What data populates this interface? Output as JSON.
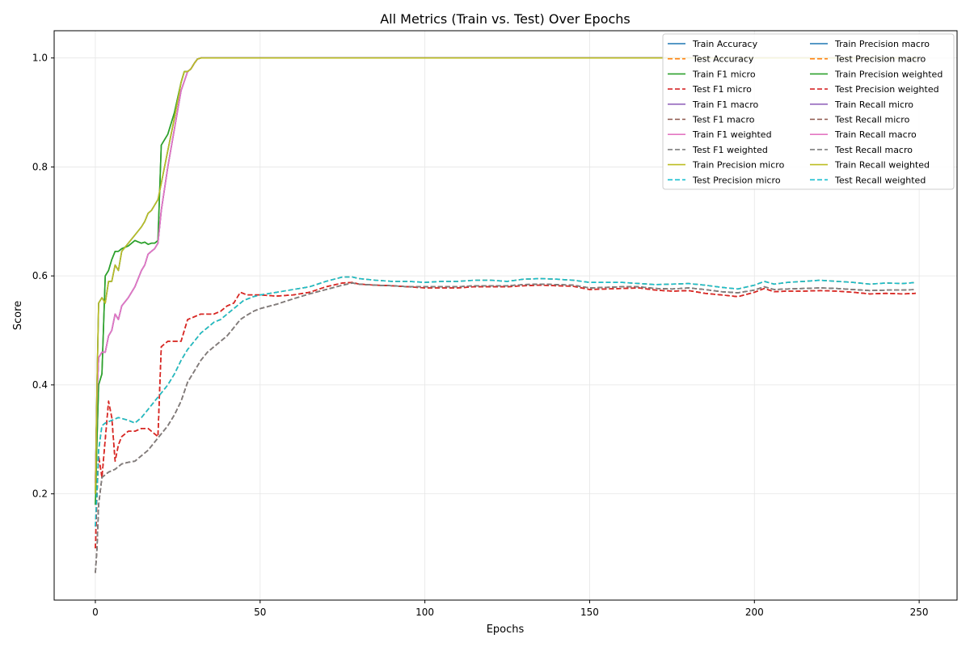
{
  "chart_data": {
    "type": "line",
    "title": "All Metrics (Train vs. Test) Over Epochs",
    "xlabel": "Epochs",
    "ylabel": "Score",
    "xlim": [
      -12.5,
      261.5
    ],
    "ylim": [
      0.005,
      1.05
    ],
    "xticks": [
      "0",
      "50",
      "100",
      "150",
      "200",
      "250"
    ],
    "yticks": [
      "0.2",
      "0.4",
      "0.6",
      "0.8",
      "1.0"
    ],
    "grid": true,
    "legend_position": "top-right",
    "legend_columns": 2,
    "colors": {
      "blue": "#1f77b4",
      "orange": "#ff7f0e",
      "green": "#2ca02c",
      "red": "#d62728",
      "purple": "#9467bd",
      "brown": "#8c564b",
      "pink": "#e377c2",
      "gray": "#7f7f7f",
      "olive": "#bcbd22",
      "cyan": "#17becf"
    },
    "curves": {
      "train_a": [
        [
          0,
          0.22
        ],
        [
          0.5,
          0.38
        ],
        [
          1,
          0.45
        ],
        [
          2,
          0.46
        ],
        [
          3,
          0.46
        ],
        [
          4,
          0.49
        ],
        [
          5,
          0.5
        ],
        [
          6,
          0.53
        ],
        [
          7,
          0.52
        ],
        [
          8,
          0.545
        ],
        [
          10,
          0.56
        ],
        [
          12,
          0.58
        ],
        [
          14,
          0.61
        ],
        [
          15,
          0.62
        ],
        [
          16,
          0.64
        ],
        [
          17,
          0.645
        ],
        [
          18,
          0.65
        ],
        [
          19,
          0.66
        ],
        [
          20,
          0.72
        ],
        [
          22,
          0.8
        ],
        [
          24,
          0.87
        ],
        [
          26,
          0.94
        ],
        [
          28,
          0.975
        ],
        [
          29,
          0.98
        ],
        [
          30,
          0.99
        ],
        [
          31,
          0.998
        ],
        [
          32,
          1.0
        ],
        [
          250,
          1.0
        ]
      ],
      "train_b": [
        [
          0,
          0.2
        ],
        [
          0.5,
          0.4
        ],
        [
          1,
          0.55
        ],
        [
          2,
          0.56
        ],
        [
          3,
          0.55
        ],
        [
          4,
          0.59
        ],
        [
          5,
          0.59
        ],
        [
          6,
          0.62
        ],
        [
          7,
          0.61
        ],
        [
          8,
          0.645
        ],
        [
          10,
          0.66
        ],
        [
          12,
          0.675
        ],
        [
          14,
          0.69
        ],
        [
          15,
          0.7
        ],
        [
          16,
          0.715
        ],
        [
          17,
          0.72
        ],
        [
          18,
          0.73
        ],
        [
          19,
          0.74
        ],
        [
          20,
          0.77
        ],
        [
          22,
          0.83
        ],
        [
          24,
          0.89
        ],
        [
          26,
          0.955
        ],
        [
          27,
          0.975
        ],
        [
          28,
          0.975
        ],
        [
          29,
          0.98
        ],
        [
          30,
          0.99
        ],
        [
          31,
          0.998
        ],
        [
          32,
          1.0
        ],
        [
          250,
          1.0
        ]
      ],
      "train_c": [
        [
          0,
          0.18
        ],
        [
          0.5,
          0.3
        ],
        [
          1,
          0.4
        ],
        [
          2,
          0.42
        ],
        [
          3,
          0.6
        ],
        [
          4,
          0.61
        ],
        [
          5,
          0.63
        ],
        [
          6,
          0.645
        ],
        [
          7,
          0.645
        ],
        [
          8,
          0.65
        ],
        [
          10,
          0.655
        ],
        [
          12,
          0.665
        ],
        [
          14,
          0.66
        ],
        [
          15,
          0.662
        ],
        [
          16,
          0.658
        ],
        [
          17,
          0.66
        ],
        [
          18,
          0.66
        ],
        [
          19,
          0.665
        ],
        [
          20,
          0.84
        ],
        [
          22,
          0.86
        ],
        [
          24,
          0.9
        ],
        [
          26,
          0.955
        ],
        [
          27,
          0.975
        ],
        [
          28,
          0.975
        ],
        [
          29,
          0.98
        ],
        [
          30,
          0.99
        ],
        [
          31,
          0.998
        ],
        [
          32,
          1.0
        ],
        [
          250,
          1.0
        ]
      ],
      "test_recall": [
        [
          0,
          0.14
        ],
        [
          0.5,
          0.2
        ],
        [
          1,
          0.28
        ],
        [
          2,
          0.325
        ],
        [
          3,
          0.33
        ],
        [
          5,
          0.335
        ],
        [
          7,
          0.34
        ],
        [
          10,
          0.335
        ],
        [
          12,
          0.33
        ],
        [
          14,
          0.34
        ],
        [
          16,
          0.355
        ],
        [
          18,
          0.37
        ],
        [
          20,
          0.385
        ],
        [
          22,
          0.4
        ],
        [
          24,
          0.42
        ],
        [
          26,
          0.445
        ],
        [
          28,
          0.465
        ],
        [
          30,
          0.48
        ],
        [
          32,
          0.495
        ],
        [
          34,
          0.505
        ],
        [
          36,
          0.515
        ],
        [
          38,
          0.52
        ],
        [
          40,
          0.53
        ],
        [
          42,
          0.54
        ],
        [
          45,
          0.555
        ],
        [
          48,
          0.562
        ],
        [
          50,
          0.565
        ],
        [
          55,
          0.57
        ],
        [
          60,
          0.575
        ],
        [
          65,
          0.58
        ],
        [
          70,
          0.59
        ],
        [
          75,
          0.598
        ],
        [
          78,
          0.598
        ],
        [
          80,
          0.595
        ],
        [
          85,
          0.592
        ],
        [
          90,
          0.59
        ],
        [
          95,
          0.59
        ],
        [
          100,
          0.588
        ],
        [
          105,
          0.59
        ],
        [
          110,
          0.59
        ],
        [
          115,
          0.592
        ],
        [
          120,
          0.592
        ],
        [
          125,
          0.59
        ],
        [
          130,
          0.594
        ],
        [
          135,
          0.595
        ],
        [
          140,
          0.594
        ],
        [
          145,
          0.592
        ],
        [
          150,
          0.588
        ],
        [
          155,
          0.588
        ],
        [
          160,
          0.588
        ],
        [
          165,
          0.586
        ],
        [
          170,
          0.584
        ],
        [
          175,
          0.585
        ],
        [
          180,
          0.586
        ],
        [
          185,
          0.583
        ],
        [
          190,
          0.579
        ],
        [
          195,
          0.576
        ],
        [
          200,
          0.583
        ],
        [
          203,
          0.59
        ],
        [
          206,
          0.585
        ],
        [
          210,
          0.588
        ],
        [
          215,
          0.59
        ],
        [
          220,
          0.592
        ],
        [
          225,
          0.59
        ],
        [
          230,
          0.588
        ],
        [
          235,
          0.585
        ],
        [
          240,
          0.587
        ],
        [
          245,
          0.586
        ],
        [
          249,
          0.588
        ]
      ],
      "test_f1w": [
        [
          0,
          0.055
        ],
        [
          0.5,
          0.1
        ],
        [
          1,
          0.18
        ],
        [
          2,
          0.23
        ],
        [
          3,
          0.235
        ],
        [
          4,
          0.24
        ],
        [
          6,
          0.245
        ],
        [
          8,
          0.255
        ],
        [
          10,
          0.258
        ],
        [
          12,
          0.26
        ],
        [
          14,
          0.27
        ],
        [
          16,
          0.28
        ],
        [
          18,
          0.295
        ],
        [
          20,
          0.31
        ],
        [
          22,
          0.325
        ],
        [
          24,
          0.345
        ],
        [
          26,
          0.37
        ],
        [
          28,
          0.405
        ],
        [
          30,
          0.425
        ],
        [
          32,
          0.445
        ],
        [
          34,
          0.46
        ],
        [
          36,
          0.47
        ],
        [
          38,
          0.48
        ],
        [
          40,
          0.49
        ],
        [
          42,
          0.505
        ],
        [
          44,
          0.52
        ],
        [
          46,
          0.528
        ],
        [
          48,
          0.535
        ],
        [
          50,
          0.54
        ],
        [
          55,
          0.548
        ],
        [
          60,
          0.558
        ],
        [
          65,
          0.567
        ],
        [
          70,
          0.575
        ],
        [
          75,
          0.583
        ],
        [
          78,
          0.587
        ],
        [
          80,
          0.585
        ],
        [
          85,
          0.583
        ],
        [
          90,
          0.582
        ],
        [
          95,
          0.58
        ],
        [
          100,
          0.58
        ],
        [
          105,
          0.58
        ],
        [
          110,
          0.58
        ],
        [
          115,
          0.582
        ],
        [
          120,
          0.582
        ],
        [
          125,
          0.582
        ],
        [
          130,
          0.584
        ],
        [
          135,
          0.585
        ],
        [
          140,
          0.584
        ],
        [
          145,
          0.583
        ],
        [
          150,
          0.578
        ],
        [
          155,
          0.579
        ],
        [
          160,
          0.58
        ],
        [
          165,
          0.58
        ],
        [
          170,
          0.577
        ],
        [
          175,
          0.576
        ],
        [
          180,
          0.578
        ],
        [
          185,
          0.575
        ],
        [
          190,
          0.571
        ],
        [
          195,
          0.569
        ],
        [
          200,
          0.574
        ],
        [
          203,
          0.58
        ],
        [
          206,
          0.575
        ],
        [
          210,
          0.576
        ],
        [
          215,
          0.577
        ],
        [
          220,
          0.578
        ],
        [
          225,
          0.577
        ],
        [
          230,
          0.575
        ],
        [
          235,
          0.573
        ],
        [
          240,
          0.574
        ],
        [
          245,
          0.574
        ],
        [
          249,
          0.575
        ]
      ],
      "test_micro": [
        [
          0,
          0.1
        ],
        [
          0.5,
          0.2
        ],
        [
          1,
          0.27
        ],
        [
          2,
          0.23
        ],
        [
          3,
          0.3
        ],
        [
          4,
          0.37
        ],
        [
          5,
          0.34
        ],
        [
          6,
          0.26
        ],
        [
          7,
          0.29
        ],
        [
          8,
          0.305
        ],
        [
          10,
          0.315
        ],
        [
          12,
          0.315
        ],
        [
          14,
          0.32
        ],
        [
          16,
          0.32
        ],
        [
          18,
          0.31
        ],
        [
          19,
          0.305
        ],
        [
          20,
          0.47
        ],
        [
          22,
          0.48
        ],
        [
          24,
          0.48
        ],
        [
          26,
          0.48
        ],
        [
          28,
          0.52
        ],
        [
          30,
          0.525
        ],
        [
          32,
          0.53
        ],
        [
          34,
          0.53
        ],
        [
          36,
          0.53
        ],
        [
          38,
          0.535
        ],
        [
          40,
          0.545
        ],
        [
          42,
          0.55
        ],
        [
          44,
          0.57
        ],
        [
          46,
          0.565
        ],
        [
          48,
          0.565
        ],
        [
          50,
          0.565
        ],
        [
          55,
          0.563
        ],
        [
          60,
          0.565
        ],
        [
          65,
          0.57
        ],
        [
          70,
          0.58
        ],
        [
          75,
          0.587
        ],
        [
          78,
          0.588
        ],
        [
          80,
          0.585
        ],
        [
          85,
          0.583
        ],
        [
          90,
          0.582
        ],
        [
          95,
          0.58
        ],
        [
          100,
          0.578
        ],
        [
          105,
          0.578
        ],
        [
          110,
          0.578
        ],
        [
          115,
          0.58
        ],
        [
          120,
          0.58
        ],
        [
          125,
          0.58
        ],
        [
          130,
          0.582
        ],
        [
          135,
          0.583
        ],
        [
          140,
          0.582
        ],
        [
          145,
          0.581
        ],
        [
          150,
          0.575
        ],
        [
          155,
          0.576
        ],
        [
          160,
          0.577
        ],
        [
          165,
          0.578
        ],
        [
          170,
          0.574
        ],
        [
          175,
          0.572
        ],
        [
          180,
          0.573
        ],
        [
          185,
          0.568
        ],
        [
          190,
          0.565
        ],
        [
          195,
          0.562
        ],
        [
          200,
          0.57
        ],
        [
          203,
          0.577
        ],
        [
          206,
          0.571
        ],
        [
          210,
          0.572
        ],
        [
          215,
          0.572
        ],
        [
          220,
          0.573
        ],
        [
          225,
          0.572
        ],
        [
          230,
          0.57
        ],
        [
          235,
          0.567
        ],
        [
          240,
          0.568
        ],
        [
          245,
          0.567
        ],
        [
          249,
          0.568
        ]
      ]
    },
    "series": [
      {
        "name": "Train Accuracy",
        "style": "solid",
        "color": "#1f77b4",
        "curve": "train_a"
      },
      {
        "name": "Test Accuracy",
        "style": "dashed",
        "color": "#ff7f0e",
        "curve": "test_micro"
      },
      {
        "name": "Train F1 micro",
        "style": "solid",
        "color": "#2ca02c",
        "curve": "train_c"
      },
      {
        "name": "Test F1 micro",
        "style": "dashed",
        "color": "#d62728",
        "curve": "test_micro"
      },
      {
        "name": "Train F1 macro",
        "style": "solid",
        "color": "#9467bd",
        "curve": "train_a"
      },
      {
        "name": "Test F1 macro",
        "style": "dashed",
        "color": "#8c564b",
        "curve": "test_f1w"
      },
      {
        "name": "Train F1 weighted",
        "style": "solid",
        "color": "#e377c2",
        "curve": "train_a"
      },
      {
        "name": "Test F1 weighted",
        "style": "dashed",
        "color": "#7f7f7f",
        "curve": "test_f1w"
      },
      {
        "name": "Train Precision micro",
        "style": "solid",
        "color": "#bcbd22",
        "curve": "train_b"
      },
      {
        "name": "Test Precision micro",
        "style": "dashed",
        "color": "#17becf",
        "curve": "test_recall"
      },
      {
        "name": "Train Precision macro",
        "style": "solid",
        "color": "#1f77b4",
        "curve": "train_b"
      },
      {
        "name": "Test Precision macro",
        "style": "dashed",
        "color": "#ff7f0e",
        "curve": "test_recall"
      },
      {
        "name": "Train Precision weighted",
        "style": "solid",
        "color": "#2ca02c",
        "curve": "train_c"
      },
      {
        "name": "Test Precision weighted",
        "style": "dashed",
        "color": "#d62728",
        "curve": "test_micro"
      },
      {
        "name": "Train Recall micro",
        "style": "solid",
        "color": "#9467bd",
        "curve": "train_a"
      },
      {
        "name": "Test Recall micro",
        "style": "dashed",
        "color": "#8c564b",
        "curve": "test_f1w"
      },
      {
        "name": "Train Recall macro",
        "style": "solid",
        "color": "#e377c2",
        "curve": "train_a"
      },
      {
        "name": "Test Recall macro",
        "style": "dashed",
        "color": "#7f7f7f",
        "curve": "test_f1w"
      },
      {
        "name": "Train Recall weighted",
        "style": "solid",
        "color": "#bcbd22",
        "curve": "train_b"
      },
      {
        "name": "Test Recall weighted",
        "style": "dashed",
        "color": "#17becf",
        "curve": "test_recall"
      }
    ]
  }
}
